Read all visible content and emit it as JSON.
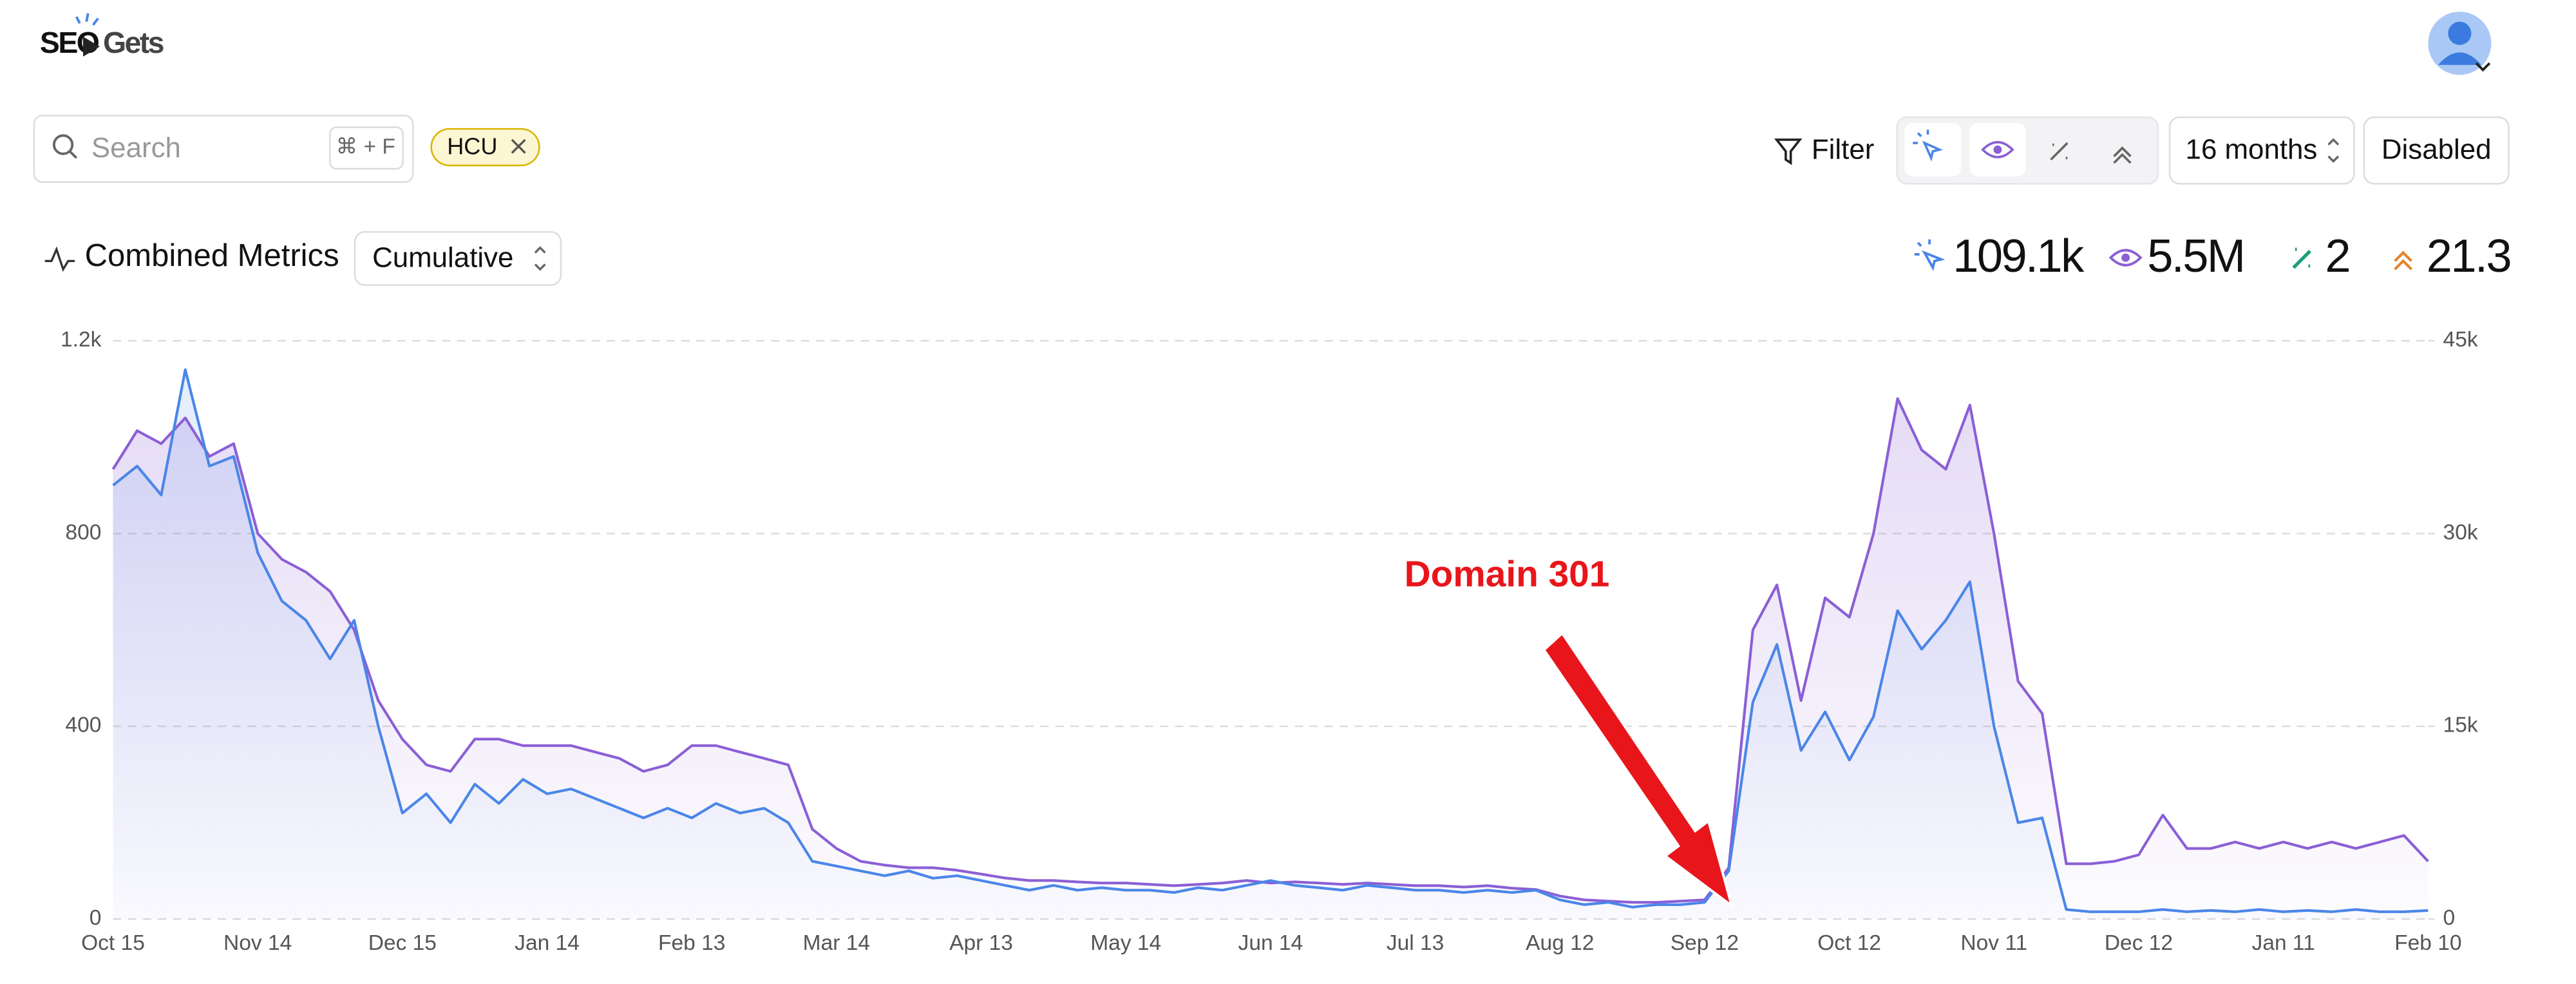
{
  "header": {
    "logo_left": "SEO",
    "logo_right": "Gets"
  },
  "toolbar": {
    "search_placeholder": "Search",
    "shortcut": "⌘ + F",
    "tag": "HCU",
    "filter": "Filter",
    "period": "16 months",
    "mode": "Disabled"
  },
  "metrics": {
    "title": "Combined Metrics",
    "aggregation": "Cumulative",
    "stats": [
      "109.1k",
      "5.5M",
      "2",
      "21.3"
    ]
  },
  "chart_data": {
    "type": "line",
    "annotation": "Domain 301",
    "categories": [
      "Oct 15",
      null,
      null,
      null,
      null,
      null,
      "Nov 14",
      null,
      null,
      null,
      null,
      null,
      "Dec 15",
      null,
      null,
      null,
      null,
      null,
      "Jan 14",
      null,
      null,
      null,
      null,
      null,
      "Feb 13",
      null,
      null,
      null,
      null,
      null,
      "Mar 14",
      null,
      null,
      null,
      null,
      null,
      "Apr 13",
      null,
      null,
      null,
      null,
      null,
      "May 14",
      null,
      null,
      null,
      null,
      null,
      "Jun 14",
      null,
      null,
      null,
      null,
      null,
      "Jul 13",
      null,
      null,
      null,
      null,
      null,
      "Aug 12",
      null,
      null,
      null,
      null,
      null,
      "Sep 12",
      null,
      null,
      null,
      null,
      null,
      "Oct 12",
      null,
      null,
      null,
      null,
      null,
      "Nov 11",
      null,
      null,
      null,
      null,
      null,
      "Dec 12",
      null,
      null,
      null,
      null,
      null,
      "Jan 11",
      null,
      null,
      null,
      null,
      null,
      "Feb 10"
    ],
    "series": [
      {
        "name": "Clicks",
        "color": "#4a86e8",
        "axis": "y",
        "values": [
          900,
          940,
          880,
          1140,
          940,
          960,
          760,
          660,
          620,
          540,
          620,
          400,
          220,
          260,
          200,
          280,
          240,
          290,
          260,
          270,
          250,
          230,
          210,
          230,
          210,
          240,
          220,
          230,
          200,
          120,
          110,
          100,
          90,
          100,
          85,
          90,
          80,
          70,
          60,
          70,
          60,
          65,
          60,
          60,
          55,
          65,
          60,
          70,
          80,
          70,
          65,
          60,
          70,
          65,
          60,
          60,
          55,
          60,
          55,
          60,
          40,
          30,
          35,
          25,
          30,
          30,
          35,
          100,
          450,
          570,
          350,
          430,
          330,
          420,
          640,
          560,
          620,
          700,
          400,
          200,
          210,
          20,
          15,
          15,
          15,
          20,
          15,
          18,
          15,
          20,
          15,
          18,
          15,
          20,
          15,
          15,
          18
        ]
      },
      {
        "name": "Impressions",
        "color": "#8b5fd6",
        "axis": "y2",
        "values": [
          35000,
          38000,
          37000,
          39000,
          36000,
          37000,
          30000,
          28000,
          27000,
          25500,
          22500,
          17000,
          14000,
          12000,
          11500,
          14000,
          14000,
          13500,
          13500,
          13500,
          13000,
          12500,
          11500,
          12000,
          13500,
          13500,
          13000,
          12500,
          12000,
          7000,
          5500,
          4500,
          4200,
          4000,
          4000,
          3800,
          3500,
          3200,
          3000,
          3000,
          2900,
          2800,
          2800,
          2700,
          2600,
          2700,
          2800,
          3000,
          2800,
          2900,
          2800,
          2700,
          2800,
          2700,
          2600,
          2600,
          2500,
          2600,
          2400,
          2300,
          1800,
          1500,
          1400,
          1300,
          1300,
          1400,
          1500,
          4000,
          22500,
          26000,
          17000,
          25000,
          23500,
          30000,
          40500,
          36500,
          35000,
          40000,
          30000,
          18500,
          16000,
          4300,
          4300,
          4500,
          5000,
          8100,
          5500,
          5500,
          6000,
          5500,
          6000,
          5500,
          6000,
          5500,
          6000,
          6500,
          4500
        ]
      }
    ],
    "ylim": [
      0,
      1200
    ],
    "yticks": [
      0,
      400,
      800,
      {
        "value": 1200,
        "label": "1.2k"
      }
    ],
    "y2lim": [
      0,
      45000
    ],
    "y2ticks": [
      0,
      {
        "value": 15000,
        "label": "15k"
      },
      {
        "value": 30000,
        "label": "30k"
      },
      {
        "value": 45000,
        "label": "45k"
      }
    ],
    "grid": true
  }
}
